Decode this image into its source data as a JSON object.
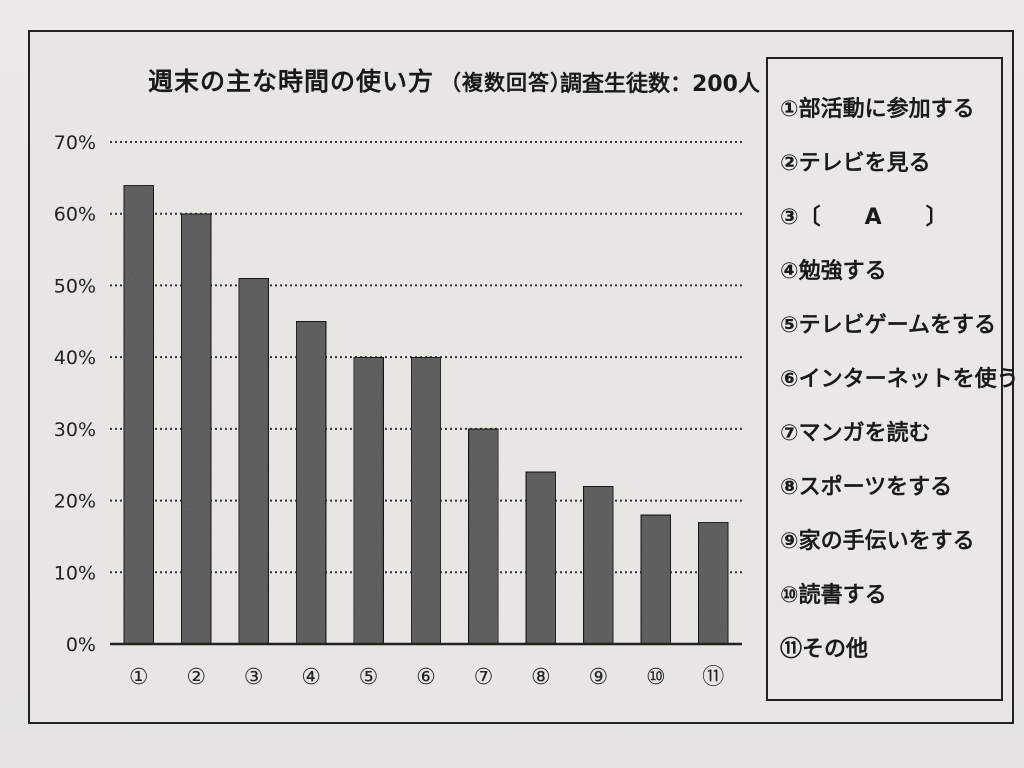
{
  "chart_data": {
    "type": "bar",
    "title": "週末の主な時間の使い方",
    "title_note": "（複数回答）",
    "subtitle": "調査生徒数：200人",
    "categories": [
      "①",
      "②",
      "③",
      "④",
      "⑤",
      "⑥",
      "⑦",
      "⑧",
      "⑨",
      "⑩",
      "⑪"
    ],
    "values": [
      64,
      60,
      51,
      45,
      40,
      40,
      30,
      24,
      22,
      18,
      17
    ],
    "y_ticks": [
      "0%",
      "10%",
      "20%",
      "30%",
      "40%",
      "50%",
      "60%",
      "70%"
    ],
    "ylim": [
      0,
      70
    ],
    "grid": "dotted-horizontal",
    "legend": [
      "①部活動に参加する",
      "②テレビを見る",
      "③〔　　A　　〕",
      "④勉強する",
      "⑤テレビゲームをする",
      "⑥インターネットを使う",
      "⑦マンガを読む",
      "⑧スポーツをする",
      "⑨家の手伝いをする",
      "⑩読書する",
      "⑪その他"
    ],
    "legend_position": "right",
    "bar_color": "#6f6f6f"
  }
}
